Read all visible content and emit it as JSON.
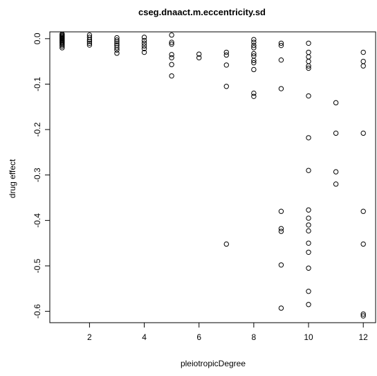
{
  "chart_data": {
    "type": "scatter",
    "title": "cseg.dnaact.m.eccentricity.sd",
    "xlabel": "pleiotropicDegree",
    "ylabel": "drug effect",
    "xlim": [
      0.55,
      12.45
    ],
    "ylim": [
      -0.625,
      0.015
    ],
    "x_ticks": [
      2,
      4,
      6,
      8,
      10,
      12
    ],
    "y_ticks": [
      0.0,
      -0.1,
      -0.2,
      -0.3,
      -0.4,
      -0.5,
      -0.6
    ],
    "x_tick_labels": [
      "2",
      "4",
      "6",
      "8",
      "10",
      "12"
    ],
    "y_tick_labels": [
      "0.0",
      "-0.1",
      "-0.2",
      "-0.3",
      "-0.4",
      "-0.5",
      "-0.6"
    ],
    "grid": false,
    "legend": "none",
    "marker": "open-circle",
    "points": [
      [
        1,
        0.01
      ],
      [
        1,
        0.008
      ],
      [
        1,
        0.006
      ],
      [
        1,
        0.004
      ],
      [
        1,
        0.002
      ],
      [
        1,
        0.0
      ],
      [
        1,
        -0.002
      ],
      [
        1,
        -0.004
      ],
      [
        1,
        -0.006
      ],
      [
        1,
        -0.008
      ],
      [
        1,
        -0.01
      ],
      [
        1,
        -0.013
      ],
      [
        1,
        -0.016
      ],
      [
        1,
        -0.02
      ],
      [
        2,
        0.008
      ],
      [
        2,
        0.003
      ],
      [
        2,
        -0.002
      ],
      [
        2,
        -0.006
      ],
      [
        2,
        -0.01
      ],
      [
        2,
        -0.014
      ],
      [
        3,
        0.002
      ],
      [
        3,
        -0.003
      ],
      [
        3,
        -0.007
      ],
      [
        3,
        -0.011
      ],
      [
        3,
        -0.015
      ],
      [
        3,
        -0.02
      ],
      [
        3,
        -0.025
      ],
      [
        3,
        -0.032
      ],
      [
        4,
        0.003
      ],
      [
        4,
        -0.004
      ],
      [
        4,
        -0.01
      ],
      [
        4,
        -0.016
      ],
      [
        4,
        -0.022
      ],
      [
        4,
        -0.03
      ],
      [
        5,
        0.008
      ],
      [
        5,
        -0.008
      ],
      [
        5,
        -0.012
      ],
      [
        5,
        -0.035
      ],
      [
        5,
        -0.042
      ],
      [
        5,
        -0.057
      ],
      [
        5,
        -0.082
      ],
      [
        6,
        -0.034
      ],
      [
        6,
        -0.042
      ],
      [
        7,
        -0.03
      ],
      [
        7,
        -0.036
      ],
      [
        7,
        -0.058
      ],
      [
        7,
        -0.105
      ],
      [
        7,
        -0.452
      ],
      [
        8,
        -0.002
      ],
      [
        8,
        -0.008
      ],
      [
        8,
        -0.015
      ],
      [
        8,
        -0.02
      ],
      [
        8,
        -0.033
      ],
      [
        8,
        -0.038
      ],
      [
        8,
        -0.048
      ],
      [
        8,
        -0.053
      ],
      [
        8,
        -0.068
      ],
      [
        8,
        -0.12
      ],
      [
        8,
        -0.127
      ],
      [
        9,
        -0.01
      ],
      [
        9,
        -0.015
      ],
      [
        9,
        -0.047
      ],
      [
        9,
        -0.11
      ],
      [
        9,
        -0.38
      ],
      [
        9,
        -0.418
      ],
      [
        9,
        -0.424
      ],
      [
        9,
        -0.498
      ],
      [
        9,
        -0.593
      ],
      [
        10,
        -0.01
      ],
      [
        10,
        -0.03
      ],
      [
        10,
        -0.04
      ],
      [
        10,
        -0.05
      ],
      [
        10,
        -0.06
      ],
      [
        10,
        -0.065
      ],
      [
        10,
        -0.126
      ],
      [
        10,
        -0.218
      ],
      [
        10,
        -0.29
      ],
      [
        10,
        -0.377
      ],
      [
        10,
        -0.395
      ],
      [
        10,
        -0.41
      ],
      [
        10,
        -0.423
      ],
      [
        10,
        -0.45
      ],
      [
        10,
        -0.47
      ],
      [
        10,
        -0.505
      ],
      [
        10,
        -0.556
      ],
      [
        10,
        -0.585
      ],
      [
        11,
        -0.141
      ],
      [
        11,
        -0.208
      ],
      [
        11,
        -0.293
      ],
      [
        11,
        -0.32
      ],
      [
        12,
        -0.03
      ],
      [
        12,
        -0.05
      ],
      [
        12,
        -0.06
      ],
      [
        12,
        -0.208
      ],
      [
        12,
        -0.38
      ],
      [
        12,
        -0.452
      ],
      [
        12,
        -0.606
      ],
      [
        12,
        -0.61
      ]
    ]
  }
}
